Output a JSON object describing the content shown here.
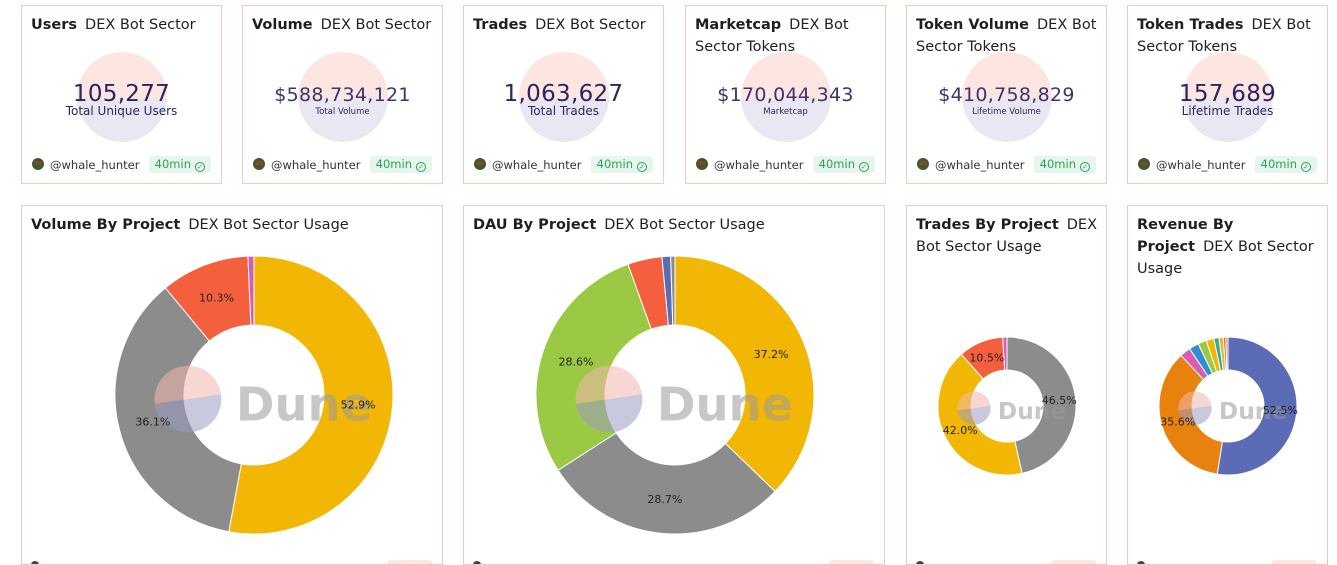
{
  "counters": [
    {
      "title": "Users",
      "subtitle": "DEX Bot Sector",
      "value": "105,277",
      "label": "Total Unique Users",
      "author": "@whale_hunter",
      "age": "40min"
    },
    {
      "title": "Volume",
      "subtitle": "DEX Bot Sector",
      "value": "$588,734,121",
      "label": "Total Volume",
      "author": "@whale_hunter",
      "age": "40min"
    },
    {
      "title": "Trades",
      "subtitle": "DEX Bot Sector",
      "value": "1,063,627",
      "label": "Total Trades",
      "author": "@whale_hunter",
      "age": "40min"
    },
    {
      "title": "Marketcap",
      "subtitle": "DEX Bot Sector Tokens",
      "value": "$170,044,343",
      "label": "Marketcap",
      "author": "@whale_hunter",
      "age": "40min"
    },
    {
      "title": "Token Volume",
      "subtitle": "DEX Bot Sector Tokens",
      "value": "$410,758,829",
      "label": "Lifetime Volume",
      "author": "@whale_hunter",
      "age": "40min"
    },
    {
      "title": "Token Trades",
      "subtitle": "DEX Bot Sector Tokens",
      "value": "157,689",
      "label": "Lifetime Trades",
      "author": "@whale_hunter",
      "age": "40min"
    }
  ],
  "watermark": "Dune",
  "chart_data": [
    {
      "type": "pie",
      "title": "Volume By Project",
      "subtitle": "DEX Bot Sector Usage",
      "slices": [
        {
          "value": 52.9,
          "label": "52.9%",
          "color": "#f2b705"
        },
        {
          "value": 36.1,
          "label": "36.1%",
          "color": "#8c8c8c"
        },
        {
          "value": 10.3,
          "label": "10.3%",
          "color": "#f4603e"
        },
        {
          "value": 0.7,
          "label": "",
          "color": "#d65db1"
        }
      ]
    },
    {
      "type": "pie",
      "title": "DAU By Project",
      "subtitle": "DEX Bot Sector Usage",
      "slices": [
        {
          "value": 37.2,
          "label": "37.2%",
          "color": "#f2b705"
        },
        {
          "value": 28.7,
          "label": "28.7%",
          "color": "#8c8c8c"
        },
        {
          "value": 28.6,
          "label": "28.6%",
          "color": "#9bc944"
        },
        {
          "value": 4.0,
          "label": "",
          "color": "#f4603e"
        },
        {
          "value": 1.0,
          "label": "",
          "color": "#5b6bb5"
        },
        {
          "value": 0.5,
          "label": "",
          "color": "#8c8c8c"
        }
      ]
    },
    {
      "type": "pie",
      "title": "Trades By Project",
      "subtitle": "DEX Bot Sector Usage",
      "slices": [
        {
          "value": 46.5,
          "label": "46.5%",
          "color": "#8c8c8c"
        },
        {
          "value": 42.0,
          "label": "42.0%",
          "color": "#f2b705"
        },
        {
          "value": 10.5,
          "label": "10.5%",
          "color": "#f4603e"
        },
        {
          "value": 1.0,
          "label": "",
          "color": "#d65db1"
        }
      ]
    },
    {
      "type": "pie",
      "title": "Revenue By Project",
      "subtitle": "DEX Bot Sector Usage",
      "slices": [
        {
          "value": 52.5,
          "label": "52.5%",
          "color": "#5b6bb5"
        },
        {
          "value": 35.6,
          "label": "35.6%",
          "color": "#e8820e"
        },
        {
          "value": 2.5,
          "label": "",
          "color": "#d65db1"
        },
        {
          "value": 2.3,
          "label": "",
          "color": "#2f8fce"
        },
        {
          "value": 2.0,
          "label": "",
          "color": "#9bc944"
        },
        {
          "value": 1.8,
          "label": "",
          "color": "#f2b705"
        },
        {
          "value": 1.2,
          "label": "",
          "color": "#3aa6a0"
        },
        {
          "value": 1.0,
          "label": "",
          "color": "#e0c020"
        },
        {
          "value": 0.6,
          "label": "",
          "color": "#f4603e"
        },
        {
          "value": 0.5,
          "label": "",
          "color": "#8c8c8c"
        }
      ]
    }
  ]
}
